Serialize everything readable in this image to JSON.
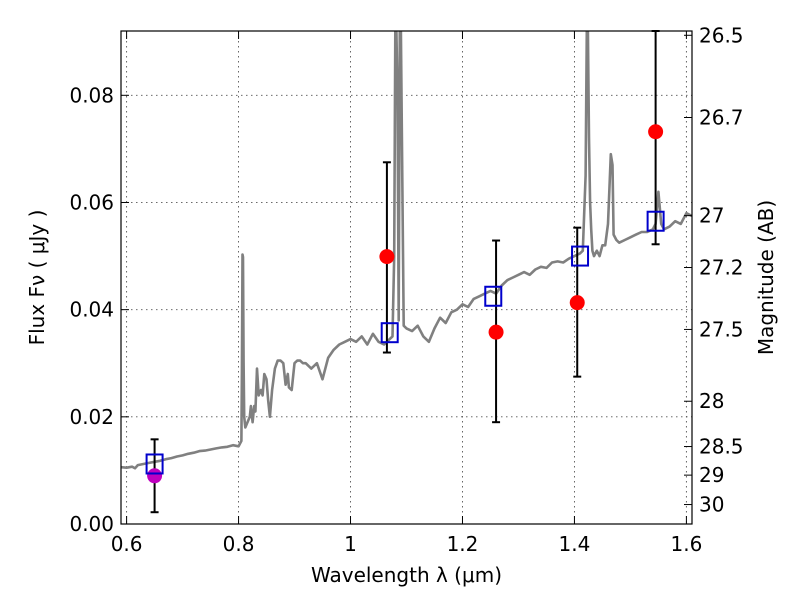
{
  "chart_data": {
    "type": "scatter",
    "xlabel": "Wavelength  λ (μm)",
    "ylabel": "Flux  Fν  ( μJy )",
    "ylabel_right": "Magnitude (AB)",
    "xlim": [
      0.59,
      1.61
    ],
    "ylim": [
      0.0,
      0.092
    ],
    "grid": true,
    "x_ticks": [
      {
        "value": 0.6,
        "label": "0.6"
      },
      {
        "value": 0.8,
        "label": "0.8"
      },
      {
        "value": 1.0,
        "label": "1"
      },
      {
        "value": 1.2,
        "label": "1.2"
      },
      {
        "value": 1.4,
        "label": "1.4"
      },
      {
        "value": 1.6,
        "label": "1.6"
      }
    ],
    "y_ticks": [
      {
        "value": 0.0,
        "label": "0.00"
      },
      {
        "value": 0.02,
        "label": "0.02"
      },
      {
        "value": 0.04,
        "label": "0.04"
      },
      {
        "value": 0.06,
        "label": "0.06"
      },
      {
        "value": 0.08,
        "label": "0.08"
      }
    ],
    "mag_ticks": [
      {
        "value": 26.5,
        "label": "26.5"
      },
      {
        "value": 26.7,
        "label": "26.7"
      },
      {
        "value": 27,
        "label": "27"
      },
      {
        "value": 27.2,
        "label": "27.2"
      },
      {
        "value": 27.5,
        "label": "27.5"
      },
      {
        "value": 28,
        "label": "28"
      },
      {
        "value": 28.5,
        "label": "28.5"
      },
      {
        "value": 29,
        "label": "29"
      },
      {
        "value": 30,
        "label": "30"
      }
    ],
    "colors": {
      "model_spectrum": "#808080",
      "observed": "#ff0000",
      "observed_optical": "#bf00bf",
      "model_photometry": "#0000cc",
      "error_bars": "#000000"
    },
    "model_spectrum": {
      "x": [
        0.59,
        0.6,
        0.61,
        0.615,
        0.62,
        0.63,
        0.64,
        0.65,
        0.66,
        0.67,
        0.68,
        0.69,
        0.7,
        0.71,
        0.72,
        0.73,
        0.74,
        0.75,
        0.76,
        0.77,
        0.78,
        0.79,
        0.8,
        0.805,
        0.806,
        0.807,
        0.808,
        0.809,
        0.81,
        0.812,
        0.82,
        0.822,
        0.825,
        0.828,
        0.83,
        0.833,
        0.836,
        0.84,
        0.843,
        0.846,
        0.85,
        0.853,
        0.856,
        0.86,
        0.865,
        0.87,
        0.875,
        0.88,
        0.884,
        0.888,
        0.89,
        0.895,
        0.9,
        0.905,
        0.91,
        0.915,
        0.92,
        0.93,
        0.94,
        0.95,
        0.96,
        0.97,
        0.98,
        0.99,
        1.0,
        1.01,
        1.02,
        1.03,
        1.04,
        1.05,
        1.06,
        1.07,
        1.075,
        1.078,
        1.08,
        1.082,
        1.084,
        1.086,
        1.088,
        1.09,
        1.095,
        1.1,
        1.11,
        1.12,
        1.13,
        1.14,
        1.15,
        1.16,
        1.17,
        1.18,
        1.19,
        1.2,
        1.21,
        1.22,
        1.23,
        1.24,
        1.25,
        1.26,
        1.27,
        1.28,
        1.29,
        1.3,
        1.31,
        1.32,
        1.33,
        1.34,
        1.35,
        1.36,
        1.37,
        1.38,
        1.39,
        1.4,
        1.41,
        1.415,
        1.42,
        1.422,
        1.424,
        1.426,
        1.428,
        1.43,
        1.432,
        1.435,
        1.44,
        1.445,
        1.45,
        1.455,
        1.46,
        1.465,
        1.468,
        1.47,
        1.475,
        1.48,
        1.49,
        1.5,
        1.51,
        1.52,
        1.53,
        1.54,
        1.545,
        1.55,
        1.555,
        1.56,
        1.57,
        1.58,
        1.59,
        1.6,
        1.61
      ],
      "y": [
        0.0106,
        0.0105,
        0.0107,
        0.0104,
        0.011,
        0.0112,
        0.0114,
        0.0116,
        0.0118,
        0.0121,
        0.0123,
        0.0126,
        0.0128,
        0.0131,
        0.0133,
        0.0136,
        0.0137,
        0.0139,
        0.0141,
        0.0143,
        0.0144,
        0.0147,
        0.0145,
        0.0155,
        0.028,
        0.0503,
        0.0498,
        0.03,
        0.02,
        0.018,
        0.02,
        0.022,
        0.019,
        0.022,
        0.021,
        0.029,
        0.024,
        0.025,
        0.024,
        0.028,
        0.027,
        0.023,
        0.02,
        0.025,
        0.029,
        0.0305,
        0.0305,
        0.03,
        0.026,
        0.028,
        0.0255,
        0.025,
        0.03,
        0.0305,
        0.0305,
        0.03,
        0.03,
        0.029,
        0.03,
        0.027,
        0.031,
        0.0325,
        0.0335,
        0.034,
        0.0345,
        0.034,
        0.035,
        0.0335,
        0.0355,
        0.034,
        0.0335,
        0.0345,
        0.035,
        0.05,
        0.092,
        0.092,
        0.08,
        0.038,
        0.092,
        0.092,
        0.037,
        0.0365,
        0.036,
        0.037,
        0.035,
        0.034,
        0.0365,
        0.0385,
        0.0375,
        0.0395,
        0.04,
        0.041,
        0.0405,
        0.042,
        0.0425,
        0.043,
        0.0435,
        0.043,
        0.0445,
        0.0455,
        0.046,
        0.0465,
        0.047,
        0.0465,
        0.0475,
        0.048,
        0.0478,
        0.0488,
        0.049,
        0.0488,
        0.0495,
        0.05,
        0.0505,
        0.051,
        0.065,
        0.092,
        0.092,
        0.072,
        0.06,
        0.055,
        0.051,
        0.05,
        0.051,
        0.05,
        0.052,
        0.052,
        0.056,
        0.069,
        0.067,
        0.054,
        0.053,
        0.0525,
        0.053,
        0.0535,
        0.054,
        0.0545,
        0.0545,
        0.055,
        0.056,
        0.062,
        0.056,
        0.055,
        0.0555,
        0.0565,
        0.056,
        0.058,
        0.0575
      ]
    },
    "observed_points": [
      {
        "x": 0.65,
        "y": 0.009,
        "color": "#bf00bf"
      },
      {
        "x": 1.065,
        "y": 0.0499
      },
      {
        "x": 1.26,
        "y": 0.0358
      },
      {
        "x": 1.405,
        "y": 0.0413
      },
      {
        "x": 1.545,
        "y": 0.0732
      }
    ],
    "error_bars": [
      {
        "x": 0.65,
        "low": 0.0022,
        "high": 0.0158
      },
      {
        "x": 1.065,
        "low": 0.032,
        "high": 0.0675
      },
      {
        "x": 1.26,
        "low": 0.019,
        "high": 0.0529
      },
      {
        "x": 1.405,
        "low": 0.0275,
        "high": 0.0553
      },
      {
        "x": 1.545,
        "low": 0.0522,
        "high": 0.092
      }
    ],
    "model_photometry": [
      {
        "x": 0.65,
        "y": 0.0112
      },
      {
        "x": 1.07,
        "y": 0.0357
      },
      {
        "x": 1.255,
        "y": 0.0425
      },
      {
        "x": 1.41,
        "y": 0.05
      },
      {
        "x": 1.545,
        "y": 0.0565
      }
    ]
  }
}
